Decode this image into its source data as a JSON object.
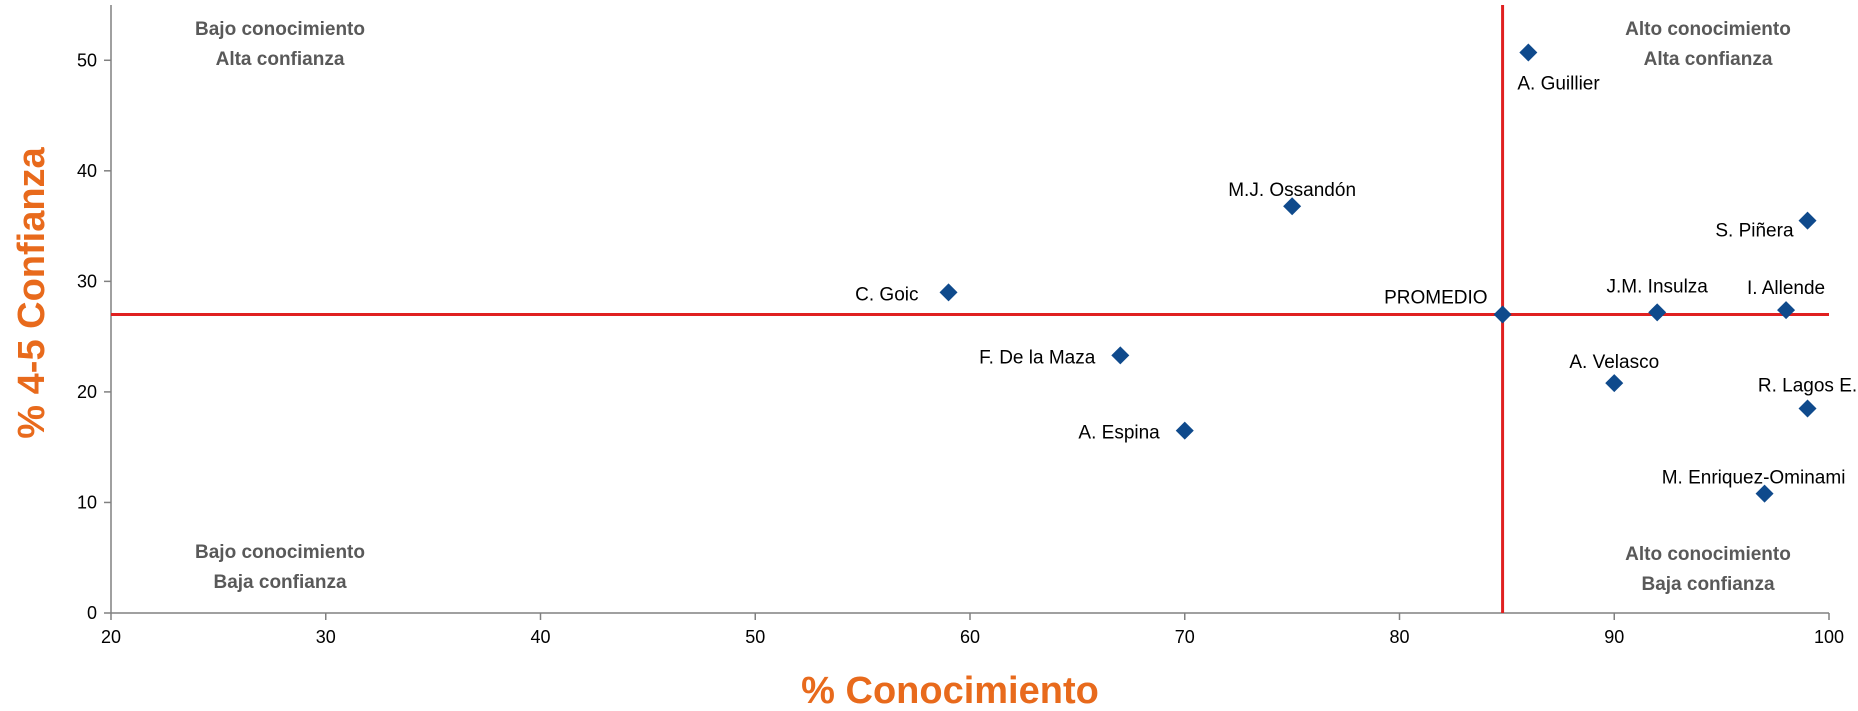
{
  "chart_data": {
    "type": "scatter",
    "title": "",
    "xlabel": "% Conocimiento",
    "ylabel": "% 4-5 Confianza",
    "xlim": [
      20,
      100
    ],
    "ylim": [
      0,
      55
    ],
    "xticks": [
      20,
      30,
      40,
      50,
      60,
      70,
      80,
      90,
      100
    ],
    "yticks": [
      0,
      10,
      20,
      30,
      40,
      50
    ],
    "grid": false,
    "legend": "none",
    "points": [
      {
        "label": "A. Guillier",
        "x": 86,
        "y": 50.7
      },
      {
        "label": "M.J. Ossandón",
        "x": 75,
        "y": 36.8
      },
      {
        "label": "S. Piñera",
        "x": 99,
        "y": 35.5
      },
      {
        "label": "C. Goic",
        "x": 59,
        "y": 29
      },
      {
        "label": "J.M. Insulza",
        "x": 92,
        "y": 27.2
      },
      {
        "label": "I. Allende",
        "x": 98,
        "y": 27.4
      },
      {
        "label": "PROMEDIO",
        "x": 84.8,
        "y": 27
      },
      {
        "label": "F. De la Maza",
        "x": 67,
        "y": 23.3
      },
      {
        "label": "A. Velasco",
        "x": 90,
        "y": 20.8
      },
      {
        "label": "R. Lagos E.",
        "x": 99,
        "y": 18.5
      },
      {
        "label": "A. Espina",
        "x": 70,
        "y": 16.5
      },
      {
        "label": "M. Enriquez-Ominami",
        "x": 97,
        "y": 10.8
      }
    ],
    "reference_lines": {
      "x": 84.8,
      "y": 27
    },
    "quadrants": {
      "top_left": [
        "Bajo conocimiento",
        "Alta confianza"
      ],
      "top_right": [
        "Alto conocimiento",
        "Alta confianza"
      ],
      "bottom_left": [
        "Bajo conocimiento",
        "Baja confianza"
      ],
      "bottom_right": [
        "Alto conocimiento",
        "Baja confianza"
      ]
    },
    "colors": {
      "marker": "#0F4A8C",
      "reference_line": "#E02020",
      "axis_title": "#E86A1C",
      "quadrant_text": "#595959"
    }
  }
}
